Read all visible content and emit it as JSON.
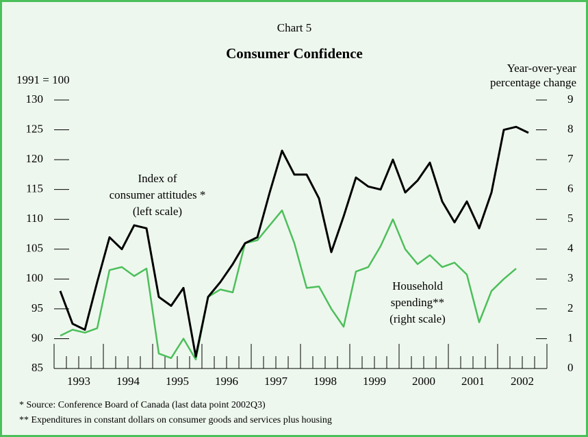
{
  "chart_data": {
    "type": "line",
    "supertitle": "Chart 5",
    "title": "Consumer Confidence",
    "y_label": "1991 = 100",
    "y2_label": [
      "Year-over-year",
      "percentage change"
    ],
    "categories": [
      "1993",
      null,
      null,
      null,
      "1994",
      null,
      null,
      null,
      "1995",
      null,
      null,
      null,
      "1996",
      null,
      null,
      null,
      "1997",
      null,
      null,
      null,
      "1998",
      null,
      null,
      null,
      "1999",
      null,
      null,
      null,
      "2000",
      null,
      null,
      null,
      "2001",
      null,
      null,
      null,
      "2002",
      null,
      null,
      null
    ],
    "series": [
      {
        "name": [
          "Index of",
          "consumer attitudes *",
          "(left scale)"
        ],
        "color": "#000000",
        "axis": "y",
        "values": [
          98,
          92.5,
          91.5,
          99.5,
          107,
          105,
          109,
          108.5,
          97,
          95.5,
          98.5,
          87,
          97,
          99.5,
          102.5,
          106,
          107,
          114.5,
          121.5,
          117.5,
          117.5,
          113.5,
          104.5,
          110.5,
          117,
          115.5,
          115,
          120,
          114.5,
          116.5,
          119.5,
          113,
          109.5,
          113,
          108.5,
          114.5,
          125,
          125.5,
          124.5,
          null
        ]
      },
      {
        "name": [
          "Household",
          "spending**",
          "(right scale)"
        ],
        "color": "#4cbf5a",
        "axis": "y2",
        "values": [
          1.1,
          1.3,
          1.2,
          1.35,
          3.3,
          3.4,
          3.1,
          3.35,
          0.5,
          0.35,
          1.0,
          0.3,
          2.4,
          2.65,
          2.55,
          4.2,
          4.3,
          4.8,
          5.3,
          4.2,
          2.7,
          2.75,
          2.0,
          1.4,
          3.25,
          3.4,
          4.1,
          5.0,
          4.0,
          3.5,
          3.8,
          3.4,
          3.55,
          3.15,
          1.55,
          2.6,
          3.0,
          3.35,
          null,
          null
        ]
      }
    ],
    "ylim": [
      85,
      130
    ],
    "yticks": [
      85,
      90,
      95,
      100,
      105,
      110,
      115,
      120,
      125,
      130
    ],
    "y2lim": [
      0,
      9
    ],
    "y2ticks": [
      0,
      1,
      2,
      3,
      4,
      5,
      6,
      7,
      8,
      9
    ],
    "footnotes": [
      "*  Source: Conference Board of Canada (last data point 2002Q3)",
      "** Expenditures in constant dollars on consumer goods and services plus housing"
    ]
  }
}
